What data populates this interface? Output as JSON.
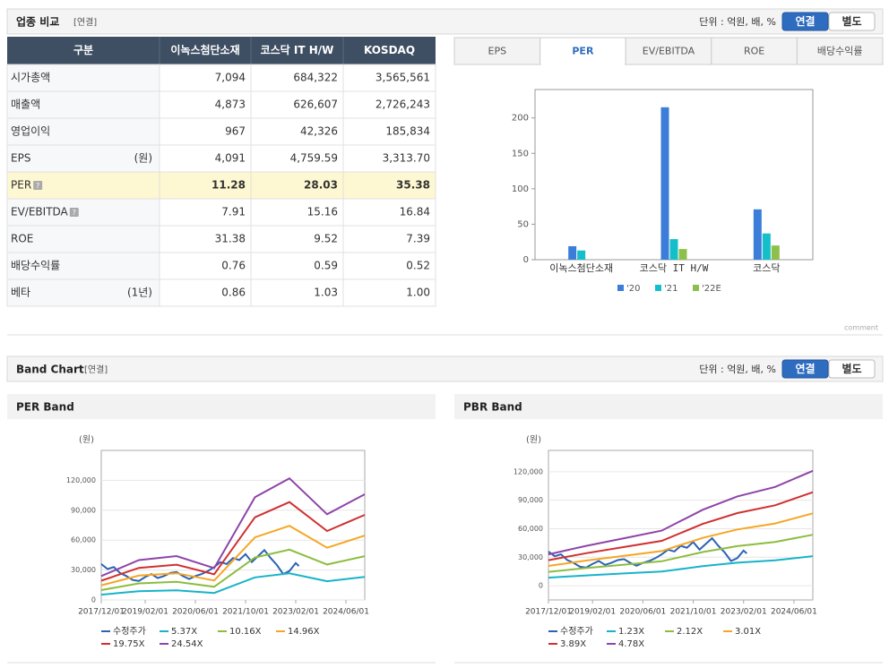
{
  "sections": [
    {
      "title": "업종 비교",
      "basis": "[연결]",
      "unit": "단위 : 억원, 배, %",
      "toggle": [
        "연결",
        "별도"
      ],
      "active": 0
    },
    {
      "title": "Band Chart",
      "basis": "[연결]",
      "unit": "단위 : 억원, 배, %",
      "toggle": [
        "연결",
        "별도"
      ],
      "active": 0
    }
  ],
  "table": {
    "header": [
      "구분",
      "이녹스첨단소재",
      "코스닥 IT H/W",
      "KOSDAQ"
    ],
    "rows": [
      {
        "label": "시가총액",
        "values": [
          "7,094",
          "684,322",
          "3,565,561"
        ]
      },
      {
        "label": "매출액",
        "values": [
          "4,873",
          "626,607",
          "2,726,243"
        ]
      },
      {
        "label": "영업이익",
        "values": [
          "967",
          "42,326",
          "185,834"
        ]
      },
      {
        "label": "EPS",
        "unit": "(원)",
        "values": [
          "4,091",
          "4,759.59",
          "3,313.70"
        ]
      },
      {
        "label": "PER",
        "help": true,
        "highlight": true,
        "values": [
          "11.28",
          "28.03",
          "35.38"
        ]
      },
      {
        "label": "EV/EBITDA",
        "help": true,
        "values": [
          "7.91",
          "15.16",
          "16.84"
        ]
      },
      {
        "label": "ROE",
        "values": [
          "31.38",
          "9.52",
          "7.39"
        ]
      },
      {
        "label": "배당수익률",
        "values": [
          "0.76",
          "0.59",
          "0.52"
        ]
      },
      {
        "label": "베타",
        "unit": "(1년)",
        "values": [
          "0.86",
          "1.03",
          "1.00"
        ]
      }
    ]
  },
  "tabs": {
    "items": [
      "EPS",
      "PER",
      "EV/EBITDA",
      "ROE",
      "배당수익률"
    ],
    "active": 1
  },
  "comment": "comment",
  "chart_data": [
    {
      "type": "bar",
      "categories": [
        "이녹스첨단소재",
        "코스닥 IT H/W",
        "코스닥"
      ],
      "series": [
        {
          "name": "'20",
          "color": "#3b7dd8",
          "values": [
            19,
            215,
            71
          ]
        },
        {
          "name": "'21",
          "color": "#14bfc9",
          "values": [
            13,
            29,
            37
          ]
        },
        {
          "name": "'22E",
          "color": "#8dc04b",
          "values": [
            null,
            15,
            20
          ]
        }
      ],
      "ylim": [
        0,
        240
      ],
      "yticks": [
        0,
        50,
        100,
        150,
        200
      ],
      "legend": "bottom"
    },
    {
      "type": "line",
      "title": "PER Band",
      "y_unit": "(원)",
      "xlim": [
        "2017/12/01",
        "2024/12/01"
      ],
      "xticks": [
        "2017/12/01",
        "2019/02/01",
        "2020/06/01",
        "2021/10/01",
        "2023/02/01",
        "2024/06/01"
      ],
      "ylim": [
        0,
        150000
      ],
      "yticks": [
        0,
        {
          "value": 30000,
          "label": "30,000"
        },
        {
          "value": 60000,
          "label": "60,000"
        },
        {
          "value": 90000,
          "label": "90,000"
        },
        {
          "value": 120000,
          "label": "120,000"
        }
      ],
      "grid": true,
      "series": [
        {
          "name": "수정주가",
          "color": "#2b62b4",
          "x": [
            "2017/12/01",
            "2018/02/01",
            "2018/04/01",
            "2018/06/01",
            "2018/08/01",
            "2018/10/01",
            "2018/12/01",
            "2019/02/01",
            "2019/04/01",
            "2019/06/01",
            "2019/08/01",
            "2019/10/01",
            "2019/12/01",
            "2020/02/01",
            "2020/04/01",
            "2020/06/01",
            "2020/08/01",
            "2020/10/01",
            "2020/12/01",
            "2021/02/01",
            "2021/04/01",
            "2021/06/01",
            "2021/08/01",
            "2021/10/01",
            "2021/12/01",
            "2022/02/01",
            "2022/04/01",
            "2022/06/01",
            "2022/08/01",
            "2022/10/01",
            "2022/12/01",
            "2023/02/01",
            "2023/03/01"
          ],
          "values": [
            36000,
            31000,
            33000,
            27000,
            24000,
            20000,
            19000,
            23000,
            26000,
            22000,
            24000,
            27000,
            28000,
            24000,
            21000,
            24000,
            26000,
            29000,
            33000,
            38000,
            36000,
            42000,
            40000,
            46000,
            38000,
            44000,
            50000,
            42000,
            35000,
            26000,
            29000,
            37000,
            34000
          ]
        },
        {
          "name": "5.37X",
          "color": "#17b3c8",
          "x": [
            "2017/12/01",
            "2018/12/01",
            "2019/12/01",
            "2020/12/01",
            "2022/01/01",
            "2022/12/01",
            "2023/12/01",
            "2024/12/01"
          ],
          "values": [
            5300,
            8800,
            9600,
            7000,
            22600,
            26700,
            18800,
            23200
          ]
        },
        {
          "name": "10.16X",
          "color": "#8cbd3f",
          "x": [
            "2017/12/01",
            "2018/12/01",
            "2019/12/01",
            "2020/12/01",
            "2022/01/01",
            "2022/12/01",
            "2023/12/01",
            "2024/12/01"
          ],
          "values": [
            9900,
            16600,
            18200,
            13200,
            42600,
            50500,
            35600,
            43900
          ]
        },
        {
          "name": "14.96X",
          "color": "#f5a623",
          "x": [
            "2017/12/01",
            "2018/12/01",
            "2019/12/01",
            "2020/12/01",
            "2022/01/01",
            "2022/12/01",
            "2023/12/01",
            "2024/12/01"
          ],
          "values": [
            14600,
            24400,
            26800,
            19500,
            62800,
            74400,
            52400,
            64600
          ]
        },
        {
          "name": "19.75X",
          "color": "#d03030",
          "x": [
            "2017/12/01",
            "2018/12/01",
            "2019/12/01",
            "2020/12/01",
            "2022/01/01",
            "2022/12/01",
            "2023/12/01",
            "2024/12/01"
          ],
          "values": [
            19300,
            32200,
            35400,
            25800,
            82900,
            98200,
            69200,
            85300
          ]
        },
        {
          "name": "24.54X",
          "color": "#8e44a8",
          "x": [
            "2017/12/01",
            "2018/12/01",
            "2019/12/01",
            "2020/12/01",
            "2022/01/01",
            "2022/12/01",
            "2023/12/01",
            "2024/12/01"
          ],
          "values": [
            24000,
            40000,
            44000,
            32000,
            103000,
            122000,
            86000,
            106000
          ]
        }
      ]
    },
    {
      "type": "line",
      "title": "PBR Band",
      "y_unit": "(원)",
      "xlim": [
        "2017/12/01",
        "2024/12/01"
      ],
      "xticks": [
        "2017/12/01",
        "2019/02/01",
        "2020/06/01",
        "2021/10/01",
        "2023/02/01",
        "2024/06/01"
      ],
      "ylim": [
        -15000,
        142500
      ],
      "yticks": [
        0,
        {
          "value": 30000,
          "label": "30,000"
        },
        {
          "value": 60000,
          "label": "60,000"
        },
        {
          "value": 90000,
          "label": "90,000"
        },
        {
          "value": 120000,
          "label": "120,000"
        }
      ],
      "grid": true,
      "series": [
        {
          "name": "수정주가",
          "color": "#2b62b4",
          "x": [
            "2017/12/01",
            "2018/02/01",
            "2018/04/01",
            "2018/06/01",
            "2018/08/01",
            "2018/10/01",
            "2018/12/01",
            "2019/02/01",
            "2019/04/01",
            "2019/06/01",
            "2019/08/01",
            "2019/10/01",
            "2019/12/01",
            "2020/02/01",
            "2020/04/01",
            "2020/06/01",
            "2020/08/01",
            "2020/10/01",
            "2020/12/01",
            "2021/02/01",
            "2021/04/01",
            "2021/06/01",
            "2021/08/01",
            "2021/10/01",
            "2021/12/01",
            "2022/02/01",
            "2022/04/01",
            "2022/06/01",
            "2022/08/01",
            "2022/10/01",
            "2022/12/01",
            "2023/02/01",
            "2023/03/01"
          ],
          "values": [
            36000,
            31000,
            33000,
            27000,
            24000,
            20000,
            19000,
            23000,
            26000,
            22000,
            24000,
            27000,
            28000,
            24000,
            21000,
            24000,
            26000,
            29000,
            33000,
            38000,
            36000,
            42000,
            40000,
            46000,
            38000,
            44000,
            50000,
            42000,
            35000,
            26000,
            29000,
            37000,
            34000
          ]
        },
        {
          "name": "1.23X",
          "color": "#17b3c8",
          "x": [
            "2017/12/01",
            "2018/12/01",
            "2019/12/01",
            "2020/12/01",
            "2022/01/01",
            "2022/12/01",
            "2023/12/01",
            "2024/12/01"
          ],
          "values": [
            8500,
            10800,
            12900,
            14900,
            20600,
            24200,
            26700,
            31100
          ]
        },
        {
          "name": "2.12X",
          "color": "#8cbd3f",
          "x": [
            "2017/12/01",
            "2018/12/01",
            "2019/12/01",
            "2020/12/01",
            "2022/01/01",
            "2022/12/01",
            "2023/12/01",
            "2024/12/01"
          ],
          "values": [
            14600,
            18600,
            22200,
            25700,
            35500,
            41700,
            46100,
            53700
          ]
        },
        {
          "name": "3.01X",
          "color": "#f5a623",
          "x": [
            "2017/12/01",
            "2018/12/01",
            "2019/12/01",
            "2020/12/01",
            "2022/01/01",
            "2022/12/01",
            "2023/12/01",
            "2024/12/01"
          ],
          "values": [
            20800,
            26500,
            31500,
            36500,
            50400,
            59200,
            65500,
            76200
          ]
        },
        {
          "name": "3.89X",
          "color": "#d03030",
          "x": [
            "2017/12/01",
            "2018/12/01",
            "2019/12/01",
            "2020/12/01",
            "2022/01/01",
            "2022/12/01",
            "2023/12/01",
            "2024/12/01"
          ],
          "values": [
            26900,
            34200,
            40700,
            47200,
            65100,
            76500,
            84700,
            98500
          ]
        },
        {
          "name": "4.78X",
          "color": "#8e44a8",
          "x": [
            "2017/12/01",
            "2018/12/01",
            "2019/12/01",
            "2020/12/01",
            "2022/01/01",
            "2022/12/01",
            "2023/12/01",
            "2024/12/01"
          ],
          "values": [
            33000,
            42000,
            50000,
            58000,
            80000,
            94000,
            104000,
            121000
          ]
        }
      ]
    }
  ]
}
